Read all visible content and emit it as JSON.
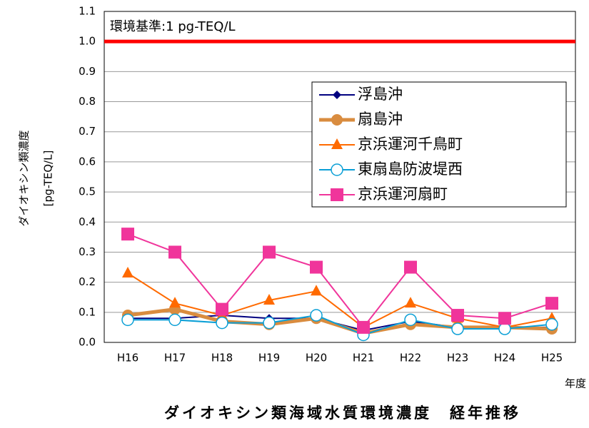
{
  "chart_data": {
    "type": "line",
    "title": "ダイオキシン類海域水質環境濃度　経年推移",
    "y_label": [
      "ダイオキシン類濃度",
      "[pg-TEQ/L]"
    ],
    "x_label": "年度",
    "categories": [
      "H16",
      "H17",
      "H18",
      "H19",
      "H20",
      "H21",
      "H22",
      "H23",
      "H24",
      "H25"
    ],
    "series": [
      {
        "name": "浮島沖",
        "color": "#000080",
        "marker": "diamond",
        "line_width": 2,
        "values": [
          0.08,
          0.08,
          0.09,
          0.08,
          0.08,
          0.04,
          0.07,
          0.05,
          0.05,
          0.05
        ]
      },
      {
        "name": "扇島沖",
        "color": "#d98c3f",
        "marker": "circle",
        "line_width": 5,
        "values": [
          0.09,
          0.11,
          0.07,
          0.06,
          0.08,
          0.03,
          0.06,
          0.05,
          0.05,
          0.045
        ]
      },
      {
        "name": "京浜運河千鳥町",
        "color": "#ff6a00",
        "marker": "triangle",
        "line_width": 2,
        "values": [
          0.23,
          0.13,
          0.09,
          0.14,
          0.17,
          0.05,
          0.13,
          0.08,
          0.05,
          0.08
        ]
      },
      {
        "name": "東扇島防波堤西",
        "color": "#0a9fd6",
        "marker": "open-circle",
        "line_width": 2,
        "values": [
          0.075,
          0.075,
          0.065,
          0.065,
          0.09,
          0.025,
          0.075,
          0.045,
          0.045,
          0.06
        ]
      },
      {
        "name": "京浜運河扇町",
        "color": "#f0359b",
        "marker": "square",
        "line_width": 2,
        "values": [
          0.36,
          0.3,
          0.11,
          0.3,
          0.25,
          0.05,
          0.25,
          0.09,
          0.08,
          0.13
        ]
      }
    ],
    "ylim": [
      0,
      1.1
    ],
    "yticks": [
      {
        "value": 0,
        "label": "0.0"
      },
      0.1,
      0.2,
      0.3,
      0.4,
      0.5,
      0.6,
      0.7,
      0.8,
      0.9,
      {
        "value": 1,
        "label": "1.0"
      },
      1.1
    ],
    "grid": true,
    "legend": "upper right",
    "threshold": {
      "value": 1,
      "label": "環境基準:1 pg-TEQ/L",
      "color": "#ff0000"
    }
  }
}
